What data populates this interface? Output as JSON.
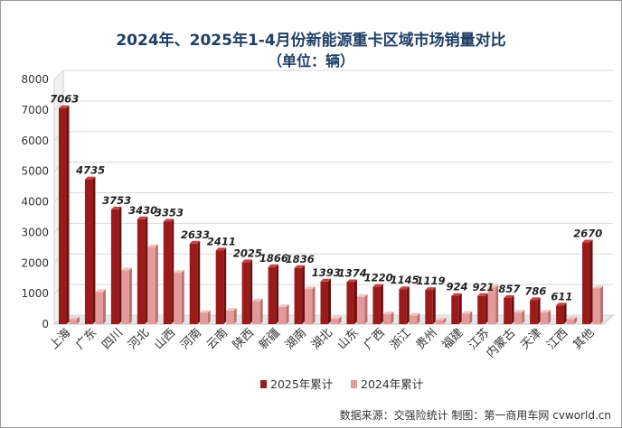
{
  "chart_data": {
    "type": "bar",
    "title": "2024年、2025年1-4月份新能源重卡区域市场销量对比",
    "subtitle": "（单位：辆）",
    "categories": [
      "上海",
      "广东",
      "四川",
      "河北",
      "山西",
      "河南",
      "云南",
      "陕西",
      "新疆",
      "湖南",
      "湖北",
      "山东",
      "广西",
      "浙江",
      "贵州",
      "福建",
      "江苏",
      "内蒙古",
      "天津",
      "江西",
      "其他"
    ],
    "series": [
      {
        "name": "2025年累计",
        "color": "#9b1b1b",
        "values": [
          7063,
          4735,
          3753,
          3430,
          3353,
          2633,
          2411,
          2025,
          1866,
          1836,
          1393,
          1374,
          1220,
          1145,
          1119,
          924,
          921,
          857,
          786,
          611,
          2670
        ]
      },
      {
        "name": "2024年累计",
        "color": "#e39a9a",
        "values": [
          160,
          1050,
          1760,
          2520,
          1680,
          370,
          440,
          750,
          560,
          1150,
          170,
          890,
          330,
          280,
          130,
          340,
          1200,
          380,
          380,
          160,
          1170
        ]
      }
    ],
    "data_labels": [
      "7063",
      "4735",
      "3753",
      "3430",
      "3353",
      "2633",
      "2411",
      "2025",
      "1866",
      "1836",
      "1393",
      "1374",
      "1220",
      "1145",
      "1119",
      "924",
      "921",
      "857",
      "786",
      "611",
      "2670"
    ],
    "y_ticks": [
      "0",
      "1000",
      "2000",
      "3000",
      "4000",
      "5000",
      "6000",
      "7000",
      "8000"
    ],
    "ylim": [
      0,
      8000
    ],
    "grid": true,
    "legend_position": "bottom"
  },
  "source_text": "数据来源：交强险统计   制图：第一商用车网 cvworld.cn"
}
